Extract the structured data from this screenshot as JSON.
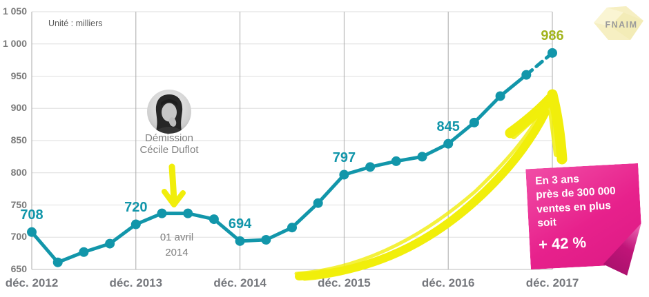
{
  "chart": {
    "unit_label": "Unité : milliers",
    "colors": {
      "line": "#1296aa",
      "point_label": "#1296aa",
      "final_point_label": "#a3b41e",
      "arrow_yellow": "#f1ee0b",
      "note_pink": "#e7218c",
      "axis_text": "#76787d",
      "annotation_text": "#7f7f7f"
    }
  },
  "chart_data": {
    "type": "line",
    "title": "",
    "unit": "milliers",
    "x": [
      "déc. 2012",
      "mars 2013",
      "juin 2013",
      "sept. 2013",
      "déc. 2013",
      "mars 2014",
      "juin 2014",
      "sept. 2014",
      "déc. 2014",
      "mars 2015",
      "juin 2015",
      "sept. 2015",
      "déc. 2015",
      "mars 2016",
      "juin 2016",
      "sept. 2016",
      "déc. 2016",
      "mars 2017",
      "juin 2017",
      "sept. 2017",
      "déc. 2017"
    ],
    "values": [
      708,
      661,
      677,
      690,
      720,
      737,
      737,
      728,
      694,
      696,
      715,
      753,
      797,
      809,
      818,
      825,
      845,
      878,
      919,
      952,
      986
    ],
    "x_tick_labels": [
      "déc. 2012",
      "déc. 2013",
      "déc. 2014",
      "déc. 2015",
      "déc. 2016",
      "déc. 2017"
    ],
    "y_ticks": [
      650,
      700,
      750,
      800,
      850,
      900,
      950,
      1000,
      1050
    ],
    "y_tick_labels": [
      "650",
      "700",
      "750",
      "800",
      "850",
      "900",
      "950",
      "1 000",
      "1 050"
    ],
    "ylim": [
      650,
      1050
    ],
    "grid": true,
    "legend": false,
    "labeled_points": [
      {
        "x_index": 0,
        "x": "déc. 2012",
        "value": 708,
        "label": "708",
        "color": "#1296aa"
      },
      {
        "x_index": 4,
        "x": "déc. 2013",
        "value": 720,
        "label": "720",
        "color": "#1296aa"
      },
      {
        "x_index": 8,
        "x": "déc. 2014",
        "value": 694,
        "label": "694",
        "color": "#1296aa"
      },
      {
        "x_index": 12,
        "x": "déc. 2015",
        "value": 797,
        "label": "797",
        "color": "#1296aa"
      },
      {
        "x_index": 16,
        "x": "déc. 2016",
        "value": 845,
        "label": "845",
        "color": "#1296aa"
      },
      {
        "x_index": 20,
        "x": "déc. 2017",
        "value": 986,
        "label": "986",
        "color": "#a3b41e"
      }
    ],
    "dashed_segment": {
      "from": "sept. 2017",
      "to": "déc. 2017"
    }
  },
  "annotations": {
    "demission": {
      "line1": "Démission",
      "line2": "Cécile Duflot",
      "date_line1": "01 avril",
      "date_line2": "2014"
    }
  },
  "note": {
    "lines": [
      "En 3 ans",
      "près de 300 000",
      "ventes en plus",
      "soit"
    ],
    "highlight": "+ 42 %"
  },
  "logo": {
    "text": "FNAIM"
  }
}
